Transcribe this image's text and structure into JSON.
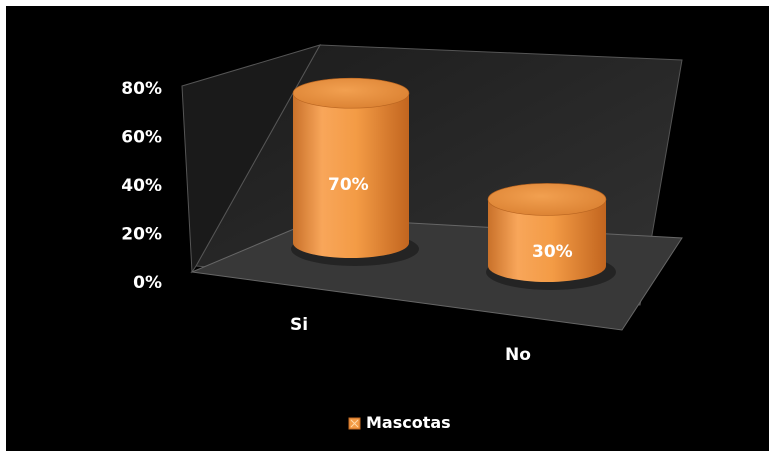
{
  "chart_data": {
    "type": "bar",
    "style": "3d-cylinder",
    "categories": [
      "Si",
      "No"
    ],
    "series": [
      {
        "name": "Mascotas",
        "values": [
          70,
          30
        ],
        "labels": [
          "70%",
          "30%"
        ]
      }
    ],
    "yticks": [
      "0%",
      "20%",
      "40%",
      "60%",
      "80%"
    ],
    "ylim": [
      0,
      80
    ],
    "grid": false,
    "legend": "bottom",
    "colors": {
      "background": "#000000",
      "bar": "#f39b45",
      "bar_dark": "#c46a22",
      "bar_top": "#e9903c",
      "wall": "#262626",
      "floor": "#3a3a3a",
      "text": "#ffffff"
    }
  }
}
